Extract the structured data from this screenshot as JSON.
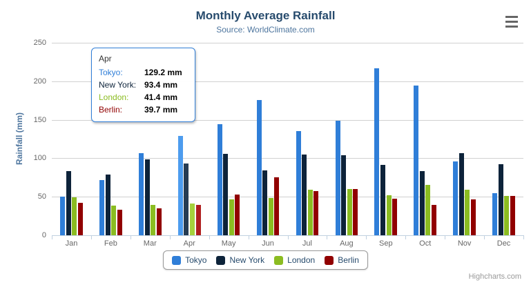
{
  "header": {
    "export_menu_icon": "hamburger-menu-icon"
  },
  "chart_data": {
    "type": "bar",
    "title": "Monthly Average Rainfall",
    "subtitle": "Source: WorldClimate.com",
    "categories": [
      "Jan",
      "Feb",
      "Mar",
      "Apr",
      "May",
      "Jun",
      "Jul",
      "Aug",
      "Sep",
      "Oct",
      "Nov",
      "Dec"
    ],
    "series": [
      {
        "name": "Tokyo",
        "color": "#2f7ed8",
        "hover_color": "#4d9cee",
        "values": [
          49.9,
          71.5,
          106.4,
          129.2,
          144.0,
          176.0,
          135.6,
          148.5,
          216.4,
          194.1,
          95.6,
          54.4
        ]
      },
      {
        "name": "New York",
        "color": "#0d233a",
        "hover_color": "#263c53",
        "values": [
          83.6,
          78.8,
          98.5,
          93.4,
          106.0,
          84.5,
          105.0,
          104.3,
          91.2,
          83.5,
          106.6,
          92.3
        ]
      },
      {
        "name": "London",
        "color": "#8bbc21",
        "hover_color": "#a5d23c",
        "values": [
          48.9,
          38.8,
          39.3,
          41.4,
          47.0,
          48.3,
          59.0,
          59.6,
          52.4,
          65.2,
          59.3,
          51.2
        ]
      },
      {
        "name": "Berlin",
        "color": "#910000",
        "hover_color": "#af1e1e",
        "values": [
          42.4,
          33.2,
          34.5,
          39.7,
          52.6,
          75.5,
          57.4,
          60.4,
          47.6,
          39.1,
          46.8,
          51.1
        ]
      }
    ],
    "xlabel": "",
    "ylabel": "Rainfall (mm)",
    "ylim": [
      0,
      250
    ],
    "ytick_interval": 50,
    "grid": true,
    "legend_position": "bottom",
    "hovered_category": "Apr"
  },
  "tooltip": {
    "header": "Apr",
    "rows": [
      {
        "label": "Tokyo:",
        "value": "129.2 mm",
        "color": "#2f7ed8"
      },
      {
        "label": "New York:",
        "value": "93.4 mm",
        "color": "#0d233a"
      },
      {
        "label": "London:",
        "value": "41.4 mm",
        "color": "#8bbc21"
      },
      {
        "label": "Berlin:",
        "value": "39.7 mm",
        "color": "#910000"
      }
    ]
  },
  "credits": {
    "label": "Highcharts.com"
  },
  "colors": {
    "title_text": "#274b6d",
    "subtitle_text": "#4d759e",
    "axis_label": "#666666",
    "gridline": "#d0d0d0",
    "axis_line": "#c0d0e0",
    "legend_text": "#274b6d",
    "tooltip_border": "#2f7ed8"
  }
}
